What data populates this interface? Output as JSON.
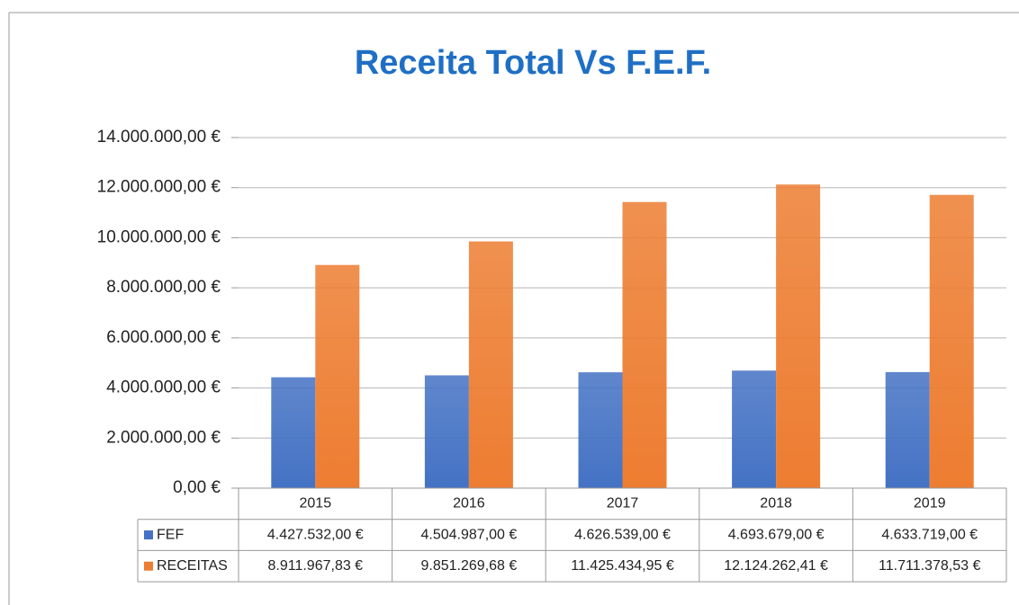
{
  "chart_data": {
    "type": "bar",
    "title": "Receita Total Vs F.E.F.",
    "categories": [
      "2015",
      "2016",
      "2017",
      "2018",
      "2019"
    ],
    "series": [
      {
        "name": "FEF",
        "color": "#4472c4",
        "values": [
          4427532.0,
          4504987.0,
          4626539.0,
          4693679.0,
          4633719.0
        ],
        "value_labels": [
          "4.427.532,00 €",
          "4.504.987,00 €",
          "4.626.539,00 €",
          "4.693.679,00 €",
          "4.633.719,00 €"
        ]
      },
      {
        "name": "RECEITAS",
        "color": "#ed7d31",
        "values": [
          8911967.83,
          9851269.68,
          11425434.95,
          12124262.41,
          11711378.53
        ],
        "value_labels": [
          "8.911.967,83 €",
          "9.851.269,68 €",
          "11.425.434,95 €",
          "12.124.262,41 €",
          "11.711.378,53 €"
        ]
      }
    ],
    "ylim": [
      0,
      14000000
    ],
    "yticks": [
      {
        "value": 0,
        "label": "0,00 €"
      },
      {
        "value": 2000000,
        "label": "2.000.000,00 €"
      },
      {
        "value": 4000000,
        "label": "4.000.000,00 €"
      },
      {
        "value": 6000000,
        "label": "6.000.000,00 €"
      },
      {
        "value": 8000000,
        "label": "8.000.000,00 €"
      },
      {
        "value": 10000000,
        "label": "10.000.000,00 €"
      },
      {
        "value": 12000000,
        "label": "12.000.000,00 €"
      },
      {
        "value": 14000000,
        "label": "14.000.000,00 €"
      }
    ],
    "grid": true
  }
}
